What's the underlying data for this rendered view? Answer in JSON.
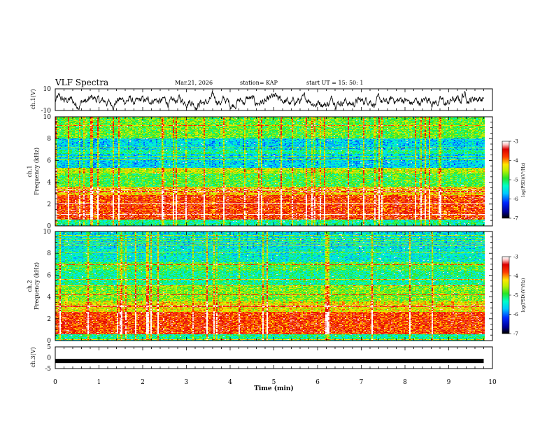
{
  "header": {
    "title": "VLF Spectra",
    "date": "Mar.21, 2026",
    "station": "station= KAP",
    "start": "start  UT =   15: 50: 1"
  },
  "chart_data": [
    {
      "type": "line",
      "name": "ch1-waveform",
      "ylabel": "ch.1(V)",
      "ylim": [
        -10,
        10
      ],
      "yticks": [
        "10",
        "-10"
      ],
      "xlim": [
        0,
        10
      ],
      "description_values": "noisy waveform oscillating roughly between -7 and 5 V across 0-9.8 min"
    },
    {
      "type": "heatmap",
      "name": "ch1-spectrogram",
      "ylabel": "ch.1",
      "ylabel2": "Frequency (kHz)",
      "ylim": [
        0,
        10
      ],
      "yticks": [
        "0",
        "2",
        "4",
        "6",
        "8",
        "10"
      ],
      "xlim": [
        0,
        10
      ],
      "data_extent_min": 9.8,
      "colorbar": {
        "label": "log(PSD)(V²/Hz)",
        "range": [
          -7,
          -3
        ],
        "ticks": [
          "-3",
          "-4",
          "-5",
          "-6",
          "-7"
        ]
      },
      "bands_log_psd": [
        {
          "f_from": 0.0,
          "f_to": 0.6,
          "value": -5.2
        },
        {
          "f_from": 0.6,
          "f_to": 2.8,
          "value": -3.7
        },
        {
          "f_from": 2.8,
          "f_to": 3.6,
          "value": -4.2
        },
        {
          "f_from": 3.6,
          "f_to": 4.8,
          "value": -4.9
        },
        {
          "f_from": 4.8,
          "f_to": 5.3,
          "value": -4.5
        },
        {
          "f_from": 5.3,
          "f_to": 6.6,
          "value": -5.6
        },
        {
          "f_from": 6.6,
          "f_to": 7.0,
          "value": -5.2
        },
        {
          "f_from": 7.0,
          "f_to": 8.0,
          "value": -5.6
        },
        {
          "f_from": 8.0,
          "f_to": 10.0,
          "value": -4.8
        }
      ]
    },
    {
      "type": "heatmap",
      "name": "ch2-spectrogram",
      "ylabel": "ch.2",
      "ylabel2": "Frequency (kHz)",
      "ylim": [
        0,
        10
      ],
      "yticks": [
        "0",
        "2",
        "4",
        "6",
        "8",
        "10"
      ],
      "xlim": [
        0,
        10
      ],
      "data_extent_min": 9.8,
      "colorbar": {
        "label": "log(PSD)(V²/Hz)",
        "range": [
          -7,
          -3
        ],
        "ticks": [
          "-3",
          "-4",
          "-5",
          "-6",
          "-7"
        ]
      },
      "bands_log_psd": [
        {
          "f_from": 0.0,
          "f_to": 0.6,
          "value": -5.2
        },
        {
          "f_from": 0.6,
          "f_to": 2.6,
          "value": -3.7
        },
        {
          "f_from": 2.6,
          "f_to": 3.6,
          "value": -4.3
        },
        {
          "f_from": 3.6,
          "f_to": 5.0,
          "value": -4.7
        },
        {
          "f_from": 5.0,
          "f_to": 6.4,
          "value": -5.2
        },
        {
          "f_from": 6.4,
          "f_to": 7.2,
          "value": -4.9
        },
        {
          "f_from": 7.2,
          "f_to": 8.4,
          "value": -5.4
        },
        {
          "f_from": 8.4,
          "f_to": 10.0,
          "value": -5.5
        }
      ]
    },
    {
      "type": "line",
      "name": "ch3-waveform",
      "ylabel": "ch.3(V)",
      "ylim": [
        -5,
        5
      ],
      "yticks": [
        "5",
        "0",
        "-5"
      ],
      "xlim": [
        0,
        10
      ],
      "level": -1.5,
      "xlabel": "Time (min)",
      "xticks": [
        "0",
        "1",
        "2",
        "3",
        "4",
        "5",
        "6",
        "7",
        "8",
        "9",
        "10"
      ]
    }
  ]
}
